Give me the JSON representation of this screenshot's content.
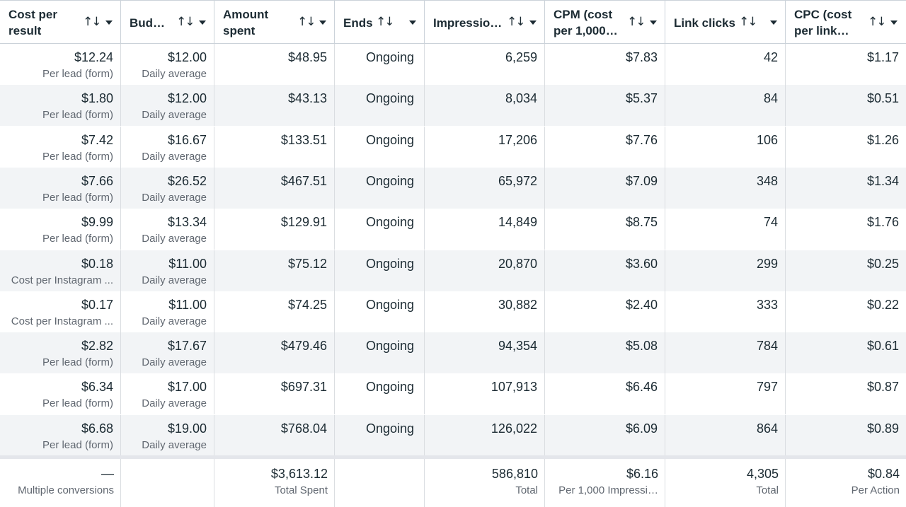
{
  "columns": [
    {
      "key": "cost_per_result",
      "label": "Cost per result"
    },
    {
      "key": "budget",
      "label": "Bud…"
    },
    {
      "key": "amount_spent",
      "label": "Amount spent"
    },
    {
      "key": "ends",
      "label": "Ends"
    },
    {
      "key": "impressions",
      "label": "Impressio…"
    },
    {
      "key": "cpm",
      "label": "CPM (cost per 1,000…"
    },
    {
      "key": "link_clicks",
      "label": "Link clicks"
    },
    {
      "key": "cpc",
      "label": "CPC (cost per link…"
    }
  ],
  "icons": {
    "sort": "sort-arrows-icon",
    "menu": "caret-down-icon"
  },
  "rows": [
    {
      "cost": "$12.24",
      "cost_sub": "Per lead (form)",
      "budget": "$12.00",
      "budget_sub": "Daily average",
      "spent": "$48.95",
      "ends": "Ongoing",
      "impressions": "6,259",
      "cpm": "$7.83",
      "clicks": "42",
      "cpc": "$1.17"
    },
    {
      "cost": "$1.80",
      "cost_sub": "Per lead (form)",
      "budget": "$12.00",
      "budget_sub": "Daily average",
      "spent": "$43.13",
      "ends": "Ongoing",
      "impressions": "8,034",
      "cpm": "$5.37",
      "clicks": "84",
      "cpc": "$0.51"
    },
    {
      "cost": "$7.42",
      "cost_sub": "Per lead (form)",
      "budget": "$16.67",
      "budget_sub": "Daily average",
      "spent": "$133.51",
      "ends": "Ongoing",
      "impressions": "17,206",
      "cpm": "$7.76",
      "clicks": "106",
      "cpc": "$1.26"
    },
    {
      "cost": "$7.66",
      "cost_sub": "Per lead (form)",
      "budget": "$26.52",
      "budget_sub": "Daily average",
      "spent": "$467.51",
      "ends": "Ongoing",
      "impressions": "65,972",
      "cpm": "$7.09",
      "clicks": "348",
      "cpc": "$1.34"
    },
    {
      "cost": "$9.99",
      "cost_sub": "Per lead (form)",
      "budget": "$13.34",
      "budget_sub": "Daily average",
      "spent": "$129.91",
      "ends": "Ongoing",
      "impressions": "14,849",
      "cpm": "$8.75",
      "clicks": "74",
      "cpc": "$1.76"
    },
    {
      "cost": "$0.18",
      "cost_sub": "Cost per Instagram ...",
      "budget": "$11.00",
      "budget_sub": "Daily average",
      "spent": "$75.12",
      "ends": "Ongoing",
      "impressions": "20,870",
      "cpm": "$3.60",
      "clicks": "299",
      "cpc": "$0.25"
    },
    {
      "cost": "$0.17",
      "cost_sub": "Cost per Instagram ...",
      "budget": "$11.00",
      "budget_sub": "Daily average",
      "spent": "$74.25",
      "ends": "Ongoing",
      "impressions": "30,882",
      "cpm": "$2.40",
      "clicks": "333",
      "cpc": "$0.22"
    },
    {
      "cost": "$2.82",
      "cost_sub": "Per lead (form)",
      "budget": "$17.67",
      "budget_sub": "Daily average",
      "spent": "$479.46",
      "ends": "Ongoing",
      "impressions": "94,354",
      "cpm": "$5.08",
      "clicks": "784",
      "cpc": "$0.61"
    },
    {
      "cost": "$6.34",
      "cost_sub": "Per lead (form)",
      "budget": "$17.00",
      "budget_sub": "Daily average",
      "spent": "$697.31",
      "ends": "Ongoing",
      "impressions": "107,913",
      "cpm": "$6.46",
      "clicks": "797",
      "cpc": "$0.87"
    },
    {
      "cost": "$6.68",
      "cost_sub": "Per lead (form)",
      "budget": "$19.00",
      "budget_sub": "Daily average",
      "spent": "$768.04",
      "ends": "Ongoing",
      "impressions": "126,022",
      "cpm": "$6.09",
      "clicks": "864",
      "cpc": "$0.89"
    }
  ],
  "totals": {
    "cost": "—",
    "cost_sub": "Multiple conversions",
    "spent": "$3,613.12",
    "spent_sub": "Total Spent",
    "impressions": "586,810",
    "impressions_sub": "Total",
    "cpm": "$6.16",
    "cpm_sub": "Per 1,000 Impressi…",
    "clicks": "4,305",
    "clicks_sub": "Total",
    "cpc": "$0.84",
    "cpc_sub": "Per Action"
  },
  "colors": {
    "header_border": "#cbd2d9",
    "stripe": "#f2f4f6",
    "subtext": "#606770",
    "text": "#1c2b33"
  }
}
